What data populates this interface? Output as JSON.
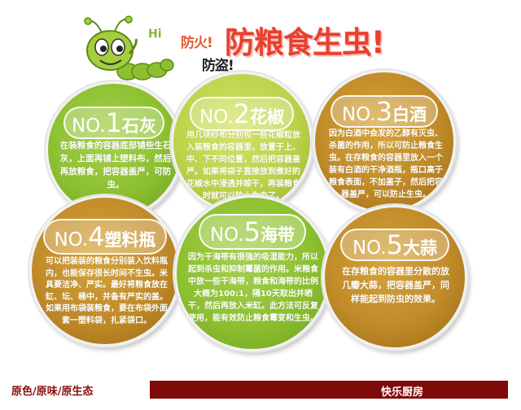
{
  "header": {
    "hi": "Hi",
    "fire_prevention": "防火!",
    "theft_prevention": "防盗!",
    "title": "防粮食生虫!"
  },
  "tips": [
    {
      "prefix": "NO.",
      "number": "1",
      "name": "石灰",
      "text": "在装粮食的容器底部铺些生石灰，上面再铺上塑料布，然后再放粮食，把容器盖严，可防虫。"
    },
    {
      "prefix": "NO.",
      "number": "2",
      "name": "花椒",
      "text": "用几块纱布分别包一些花椒粒放入装粮食的容器里，放置于上、中、下不同位置，然后把容器盖严。如果将袋子直接放到煮好的花椒水中浸透并晾干，再装粮食时就可以防止生虫了。"
    },
    {
      "prefix": "NO.",
      "number": "3",
      "name": "白酒",
      "text": "因为白酒中会发的乙醇有灭虫、杀菌的作用，所以可防止粮食生虫。在存粮食的容器里放入一个装有白酒的干净酒瓶，瓶口高于粮食表面，不加盖子，然后把容器盖严，可以防止生虫。"
    },
    {
      "prefix": "NO.",
      "number": "4",
      "name": "塑料瓶",
      "text": "可以把装装的粮食分别装入饮料瓶内，也能保存很长时间不生虫。米具要洁净、严实。最好将粮食放在缸、坛、桶中，并备有严实的盖。如果用布袋装粮食，要在布袋外面套一塑料袋，扎紧袋口。"
    },
    {
      "prefix": "NO.",
      "number": "5",
      "name": "海带",
      "text": "因为干海带有很强的吸湿能力，所以起到杀虫和抑制霉菌的作用。米粮食中放一些干海带，粮食和海带的比例大概为100:1，隔10天取出并晒干，然后再放入米缸。此方法可反复使用，能有效防止粮食霉变和生虫。"
    },
    {
      "prefix": "NO.",
      "number": "5",
      "name": "大蒜",
      "text": "在存粮食的容器里分散的放几瓣大蒜，把容器盖严，同样能起到防虫的效果。"
    }
  ],
  "footer": {
    "left": "原色/原味/原生态",
    "right": "快乐厨房"
  },
  "colors": {
    "title_red": "#e8402f",
    "circle_green": "#8cc030",
    "circle_lime": "#bcd24a",
    "circle_brown": "#c08a28",
    "footer_bar": "#7f0a0a"
  }
}
